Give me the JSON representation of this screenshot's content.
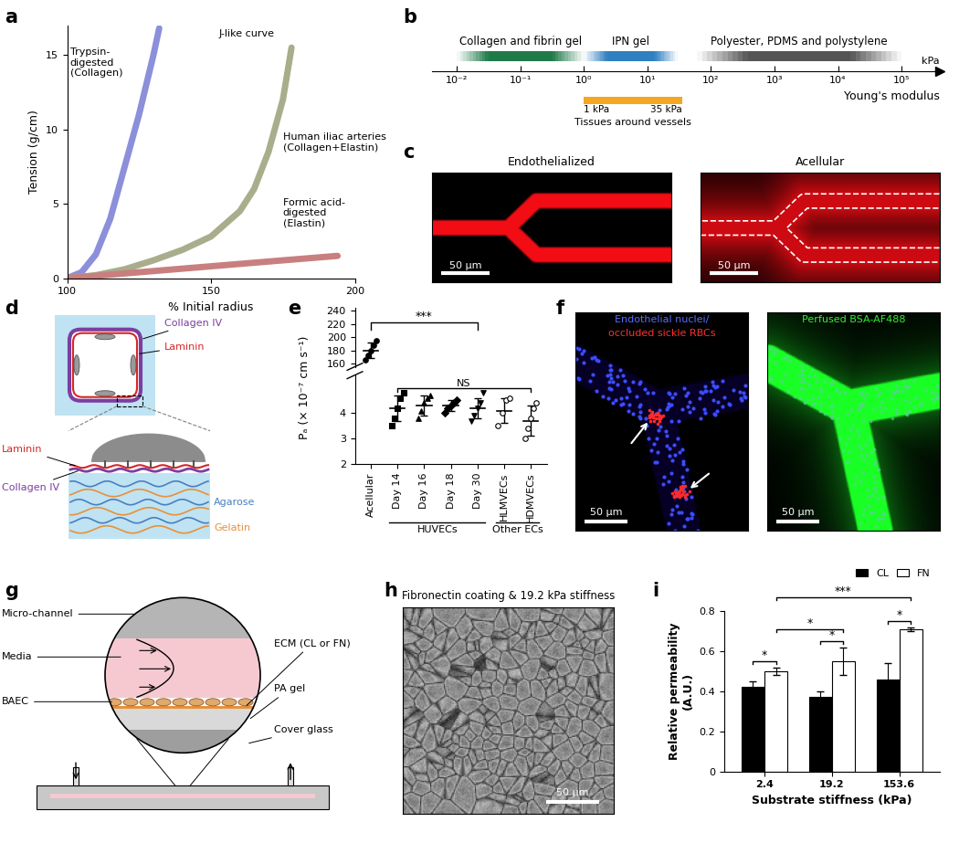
{
  "chart_data": [
    {
      "panel": "a",
      "type": "line",
      "xlabel": "% Initial radius",
      "ylabel": "Tension (g/cm)",
      "xlim": [
        100,
        200
      ],
      "xticks": [
        100,
        150,
        200
      ],
      "ylim": [
        0,
        17
      ],
      "yticks": [
        0,
        5,
        10,
        15
      ],
      "annotations": [
        "J-like curve"
      ],
      "series": [
        {
          "name": "Trypsin-\ndigested\n(Collagen)",
          "color": "#8c8fd9",
          "x": [
            100,
            105,
            110,
            115,
            120,
            125,
            130,
            132
          ],
          "values": [
            0,
            0.4,
            1.6,
            4,
            7.5,
            11,
            15,
            16.8
          ]
        },
        {
          "name": "Human iliac arteries\n(Collagen+Elastin)",
          "color": "#a9ad8c",
          "x": [
            100,
            110,
            120,
            130,
            140,
            150,
            160,
            165,
            170,
            175,
            178
          ],
          "values": [
            0,
            0.2,
            0.6,
            1.2,
            1.9,
            2.8,
            4.5,
            6,
            8.5,
            12,
            15.5
          ]
        },
        {
          "name": "Formic acid-\ndigested\n(Elastin)",
          "color": "#c97f7f",
          "x": [
            100,
            125,
            150,
            175,
            194
          ],
          "values": [
            0,
            0.4,
            0.8,
            1.2,
            1.5
          ]
        }
      ]
    },
    {
      "panel": "b",
      "type": "range",
      "xlabel": "Young's modulus",
      "log": "x",
      "xlim": [
        0.004,
        400000
      ],
      "xticks": [
        {
          "value": 0.01,
          "label": "10⁻²"
        },
        {
          "value": 0.1,
          "label": "10⁻¹"
        },
        {
          "value": 1,
          "label": "10⁰"
        },
        {
          "value": 10,
          "label": "10¹"
        },
        {
          "value": 100,
          "label": "10²"
        },
        {
          "value": 1000,
          "label": "10³"
        },
        {
          "value": 10000,
          "label": "10⁴"
        },
        {
          "value": 100000,
          "label": "10⁵"
        }
      ],
      "annotations": [
        "kPa"
      ],
      "series": [
        {
          "name": "Collagen and fibrin gel",
          "color": "#1f7a4a",
          "values": [
            0.01,
            1
          ]
        },
        {
          "name": "IPN gel",
          "color": "#2f7fc1",
          "values": [
            1,
            30
          ]
        },
        {
          "name": "Polyester, PDMS and polystylene",
          "color": "#555555",
          "values": [
            60,
            100000
          ]
        },
        {
          "name": "Tissues around vessels",
          "color": "#f5a623",
          "values": [
            1,
            35
          ],
          "value_labels": [
            "1 kPa",
            "35 kPa"
          ]
        }
      ]
    },
    {
      "panel": "e",
      "type": "scatter",
      "ylabel": "Pₐ (× 10⁻⁷ cm s⁻¹)",
      "categories": [
        "Acellular",
        "Day 14",
        "Day 16",
        "Day 18",
        "Day 30",
        "HLMVECs",
        "HDMVECs"
      ],
      "groups": [
        {
          "name": "HUVECs",
          "categories": [
            "Day 14",
            "Day 16",
            "Day 18",
            "Day 30"
          ]
        },
        {
          "name": "Other ECs",
          "categories": [
            "HLMVECs",
            "HDMVECs"
          ]
        }
      ],
      "ylim": [
        2,
        5.5
      ],
      "yticks": [
        2,
        3,
        4
      ],
      "ylim_upper": [
        155,
        245
      ],
      "yticks_upper": [
        160,
        180,
        200,
        220,
        240
      ],
      "points": [
        [
          165,
          172,
          180,
          188,
          195
        ],
        [
          3.5,
          3.8,
          4.2,
          4.6,
          4.8
        ],
        [
          3.8,
          4.1,
          4.4,
          4.6,
          4.7
        ],
        [
          4.0,
          4.2,
          4.3,
          4.4,
          4.5
        ],
        [
          3.7,
          3.9,
          4.2,
          4.4,
          4.8
        ],
        [
          3.5,
          4.0,
          4.5,
          4.6
        ],
        [
          3.0,
          3.4,
          3.8,
          4.2,
          4.4
        ]
      ],
      "means": [
        180,
        4.2,
        4.3,
        4.3,
        4.2,
        4.1,
        3.7
      ],
      "sd": [
        12,
        0.5,
        0.4,
        0.2,
        0.4,
        0.5,
        0.6
      ],
      "significance": [
        {
          "text": "***",
          "from": "Acellular",
          "to": "Day 30"
        },
        {
          "text": "NS",
          "from": "Day 14",
          "to": "HDMVECs"
        }
      ]
    },
    {
      "panel": "i",
      "type": "bar",
      "xlabel": "Substrate stiffness (kPa)",
      "ylabel": "Relative permeability\n(A.U.)",
      "categories": [
        "2.4",
        "19.2",
        "153.6"
      ],
      "ylim": [
        0,
        0.8
      ],
      "yticks": [
        0,
        0.2,
        0.4,
        0.6,
        0.8
      ],
      "legend": "upper right",
      "series": [
        {
          "name": "CL",
          "color": "#000000",
          "values": [
            0.42,
            0.37,
            0.46
          ],
          "errors": [
            0.03,
            0.03,
            0.08
          ]
        },
        {
          "name": "FN",
          "color": "#ffffff",
          "values": [
            0.5,
            0.55,
            0.71
          ],
          "errors": [
            0.02,
            0.07,
            0.01
          ]
        }
      ],
      "significance": [
        {
          "text": "*",
          "from": [
            "2.4",
            "CL"
          ],
          "to": [
            "2.4",
            "FN"
          ]
        },
        {
          "text": "*",
          "from": [
            "19.2",
            "CL"
          ],
          "to": [
            "19.2",
            "FN"
          ]
        },
        {
          "text": "*",
          "from": [
            "153.6",
            "CL"
          ],
          "to": [
            "153.6",
            "FN"
          ]
        },
        {
          "text": "*",
          "from": [
            "2.4",
            "FN"
          ],
          "to": [
            "19.2",
            "FN"
          ]
        },
        {
          "text": "***",
          "from": [
            "2.4",
            "FN"
          ],
          "to": [
            "153.6",
            "FN"
          ]
        }
      ]
    }
  ],
  "panels": [
    {
      "panel": "c",
      "images": [
        {
          "title": "Endothelialized",
          "scale_bar": "50 μm"
        },
        {
          "title": "Acellular",
          "scale_bar": "50 μm"
        }
      ]
    },
    {
      "panel": "d",
      "labels_top": [
        "Collagen IV",
        "Laminin"
      ],
      "labels_bottom": [
        "Laminin",
        "Collagen IV",
        "Agarose",
        "Gelatin"
      ]
    },
    {
      "panel": "f",
      "images": [
        {
          "title": [
            "Endothelial nuclei/",
            "occluded sickle RBCs"
          ],
          "scale_bar": "50 μm"
        },
        {
          "title": "Perfused BSA-AF488",
          "scale_bar": "50 μm"
        }
      ]
    },
    {
      "panel": "g",
      "labels": [
        "Micro-channel",
        "Media",
        "BAEC",
        "ECM (CL or FN)",
        "PA gel",
        "Cover glass"
      ]
    },
    {
      "panel": "h",
      "title": "Fibronectin coating & 19.2 kPa stiffness",
      "scale_bar": "50 μm"
    }
  ]
}
